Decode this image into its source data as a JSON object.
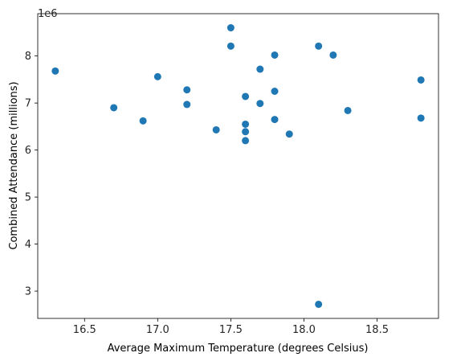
{
  "chart_data": {
    "type": "scatter",
    "title": "",
    "xlabel": "Average Maximum Temperature (degrees Celsius)",
    "ylabel": "Combined Attendance (millions)",
    "y_offset_label": "1e6",
    "xlim": [
      16.18,
      18.92
    ],
    "ylim": [
      2.42,
      8.9
    ],
    "xticks": [
      16.5,
      17.0,
      17.5,
      18.0,
      18.5
    ],
    "xtick_labels": [
      "16.5",
      "17.0",
      "17.5",
      "18.0",
      "18.5"
    ],
    "yticks": [
      3,
      4,
      5,
      6,
      7,
      8
    ],
    "ytick_labels": [
      "3",
      "4",
      "5",
      "6",
      "7",
      "8"
    ],
    "marker_color": "#1f77b4",
    "grid": false,
    "points": [
      {
        "x": 16.3,
        "y": 7.68
      },
      {
        "x": 16.7,
        "y": 6.9
      },
      {
        "x": 16.9,
        "y": 6.62
      },
      {
        "x": 17.0,
        "y": 7.56
      },
      {
        "x": 17.2,
        "y": 7.28
      },
      {
        "x": 17.2,
        "y": 6.97
      },
      {
        "x": 17.4,
        "y": 6.43
      },
      {
        "x": 17.5,
        "y": 8.6
      },
      {
        "x": 17.5,
        "y": 8.21
      },
      {
        "x": 17.6,
        "y": 7.14
      },
      {
        "x": 17.6,
        "y": 6.55
      },
      {
        "x": 17.6,
        "y": 6.39
      },
      {
        "x": 17.6,
        "y": 6.2
      },
      {
        "x": 17.7,
        "y": 7.72
      },
      {
        "x": 17.7,
        "y": 6.99
      },
      {
        "x": 17.8,
        "y": 8.02
      },
      {
        "x": 17.8,
        "y": 7.25
      },
      {
        "x": 17.8,
        "y": 6.65
      },
      {
        "x": 17.9,
        "y": 6.34
      },
      {
        "x": 18.1,
        "y": 8.21
      },
      {
        "x": 18.1,
        "y": 2.72
      },
      {
        "x": 18.2,
        "y": 8.02
      },
      {
        "x": 18.3,
        "y": 6.84
      },
      {
        "x": 18.8,
        "y": 7.49
      },
      {
        "x": 18.8,
        "y": 6.68
      }
    ]
  }
}
